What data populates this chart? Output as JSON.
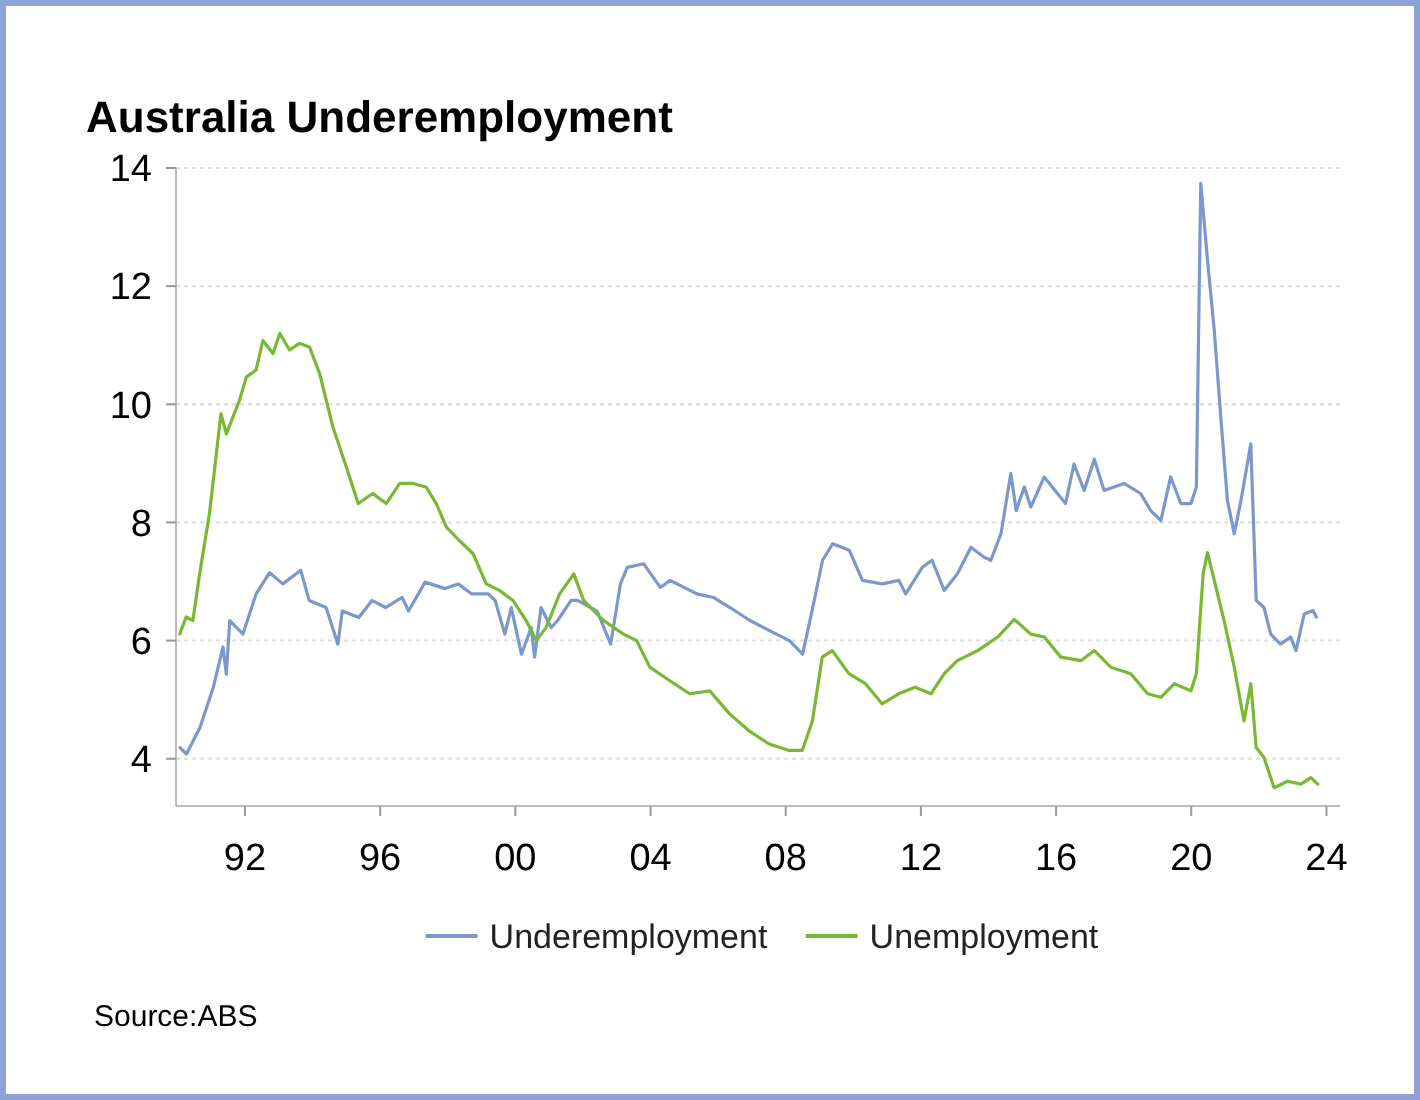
{
  "chart_data": {
    "type": "line",
    "title": "Australia Underemployment",
    "xlim": [
      1989.96,
      2024.4
    ],
    "xticks": [
      {
        "value": 1992,
        "label": "92"
      },
      {
        "value": 1996,
        "label": "96"
      },
      {
        "value": 2000,
        "label": "00"
      },
      {
        "value": 2004,
        "label": "04"
      },
      {
        "value": 2008,
        "label": "08"
      },
      {
        "value": 2012,
        "label": "12"
      },
      {
        "value": 2016,
        "label": "16"
      },
      {
        "value": 2020,
        "label": "20"
      },
      {
        "value": 2024,
        "label": "24"
      }
    ],
    "ylim": [
      3.2,
      14
    ],
    "yticks": [
      4,
      6,
      8,
      10,
      12,
      14
    ],
    "grid": "y",
    "legend": "bottom",
    "line_style": "solid",
    "marker": "none",
    "annotations": [
      "Source:ABS"
    ],
    "series": [
      {
        "name": "Underemployment",
        "color": "#7b98cc",
        "x": [
          1990.08,
          1990.27,
          1990.67,
          1991.06,
          1991.35,
          1991.45,
          1991.55,
          1991.94,
          1992.33,
          1992.73,
          1993.12,
          1993.65,
          1993.9,
          1994.4,
          1994.75,
          1994.88,
          1995.37,
          1995.76,
          1996.16,
          1996.65,
          1996.84,
          1997.33,
          1997.92,
          1998.31,
          1998.71,
          1999.2,
          1999.4,
          1999.69,
          1999.88,
          2000.18,
          2000.47,
          2000.57,
          2000.76,
          2001.06,
          2001.25,
          2001.65,
          2001.84,
          2002.42,
          2002.82,
          2003.11,
          2003.31,
          2003.8,
          2004.29,
          2004.58,
          2005.37,
          2005.86,
          2006.35,
          2006.94,
          2007.52,
          2008.11,
          2008.5,
          2008.8,
          2009.09,
          2009.39,
          2009.88,
          2010.27,
          2010.86,
          2011.35,
          2011.55,
          2012.04,
          2012.33,
          2012.69,
          2013.08,
          2013.48,
          2013.87,
          2014.07,
          2014.37,
          2014.66,
          2014.82,
          2015.06,
          2015.25,
          2015.65,
          2016.04,
          2016.28,
          2016.53,
          2016.83,
          2017.13,
          2017.42,
          2018.01,
          2018.5,
          2018.8,
          2019.1,
          2019.39,
          2019.69,
          2019.99,
          2020.15,
          2020.28,
          2020.48,
          2020.68,
          2020.88,
          2021.07,
          2021.27,
          2021.47,
          2021.76,
          2021.92,
          2022.15,
          2022.35,
          2022.64,
          2022.94,
          2023.1,
          2023.34,
          2023.6,
          2023.7
        ],
        "values": [
          4.19,
          4.08,
          4.53,
          5.2,
          5.89,
          5.43,
          6.34,
          6.11,
          6.79,
          7.15,
          6.96,
          7.19,
          6.68,
          6.56,
          5.94,
          6.5,
          6.39,
          6.68,
          6.56,
          6.73,
          6.5,
          6.99,
          6.88,
          6.96,
          6.79,
          6.79,
          6.68,
          6.11,
          6.56,
          5.77,
          6.22,
          5.72,
          6.56,
          6.22,
          6.34,
          6.68,
          6.68,
          6.5,
          5.94,
          6.96,
          7.24,
          7.3,
          6.9,
          7.02,
          6.79,
          6.73,
          6.56,
          6.34,
          6.17,
          6.0,
          5.77,
          6.56,
          7.36,
          7.64,
          7.53,
          7.02,
          6.96,
          7.02,
          6.79,
          7.24,
          7.36,
          6.85,
          7.13,
          7.58,
          7.41,
          7.36,
          7.81,
          8.83,
          8.2,
          8.6,
          8.26,
          8.77,
          8.49,
          8.32,
          8.99,
          8.54,
          9.07,
          8.54,
          8.66,
          8.49,
          8.2,
          8.03,
          8.77,
          8.32,
          8.32,
          8.6,
          13.74,
          12.44,
          11.25,
          9.73,
          8.37,
          7.81,
          8.37,
          9.33,
          6.68,
          6.56,
          6.11,
          5.94,
          6.06,
          5.83,
          6.45,
          6.51,
          6.4
        ]
      },
      {
        "name": "Unemployment",
        "color": "#78b832",
        "x": [
          1990.07,
          1990.26,
          1990.46,
          1990.66,
          1990.95,
          1991.29,
          1991.45,
          1991.84,
          1992.04,
          1992.33,
          1992.53,
          1992.83,
          1993.03,
          1993.32,
          1993.62,
          1993.91,
          1994.21,
          1994.6,
          1995.0,
          1995.35,
          1995.78,
          1996.18,
          1996.58,
          1996.97,
          1997.36,
          1997.66,
          1997.96,
          1998.35,
          1998.75,
          1999.14,
          1999.53,
          1999.93,
          2000.32,
          2000.62,
          2000.91,
          2001.31,
          2001.73,
          2002.02,
          2002.61,
          2003.2,
          2003.59,
          2003.98,
          2004.57,
          2005.16,
          2005.75,
          2006.34,
          2006.92,
          2007.51,
          2008.1,
          2008.49,
          2008.79,
          2009.08,
          2009.38,
          2009.87,
          2010.36,
          2010.85,
          2011.34,
          2011.83,
          2012.3,
          2012.69,
          2013.08,
          2013.68,
          2014.27,
          2014.76,
          2015.25,
          2015.65,
          2016.14,
          2016.73,
          2017.13,
          2017.62,
          2018.21,
          2018.71,
          2019.1,
          2019.5,
          2019.99,
          2020.15,
          2020.35,
          2020.48,
          2020.68,
          2020.97,
          2021.27,
          2021.56,
          2021.76,
          2021.92,
          2022.15,
          2022.45,
          2022.85,
          2023.24,
          2023.54,
          2023.74
        ],
        "values": [
          6.11,
          6.4,
          6.34,
          7.13,
          8.15,
          9.84,
          9.5,
          10.07,
          10.46,
          10.58,
          11.08,
          10.86,
          11.2,
          10.92,
          11.03,
          10.97,
          10.52,
          9.62,
          8.94,
          8.32,
          8.49,
          8.32,
          8.66,
          8.66,
          8.6,
          8.32,
          7.92,
          7.69,
          7.47,
          6.96,
          6.85,
          6.68,
          6.34,
          6.0,
          6.22,
          6.79,
          7.13,
          6.68,
          6.34,
          6.11,
          6.0,
          5.55,
          5.32,
          5.1,
          5.15,
          4.76,
          4.47,
          4.25,
          4.14,
          4.14,
          4.64,
          5.72,
          5.83,
          5.44,
          5.27,
          4.93,
          5.1,
          5.21,
          5.1,
          5.44,
          5.66,
          5.83,
          6.06,
          6.36,
          6.11,
          6.06,
          5.72,
          5.66,
          5.83,
          5.55,
          5.44,
          5.1,
          5.04,
          5.27,
          5.15,
          5.44,
          7.13,
          7.49,
          7.02,
          6.34,
          5.55,
          4.64,
          5.27,
          4.19,
          4.02,
          3.51,
          3.62,
          3.57,
          3.68,
          3.57
        ]
      }
    ]
  }
}
